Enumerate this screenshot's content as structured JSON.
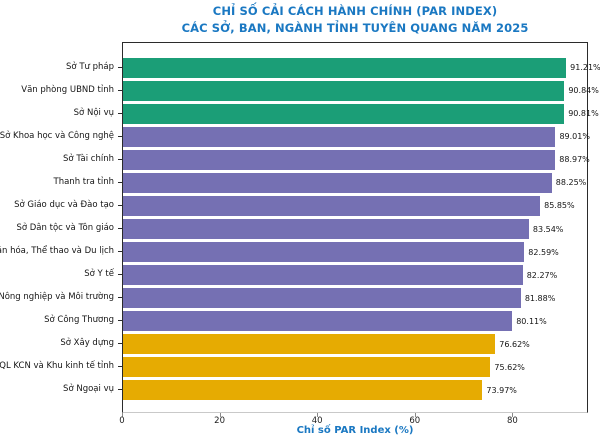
{
  "title": {
    "line1": "CHỈ SỐ CẢI CÁCH HÀNH CHÍNH (PAR INDEX)",
    "line2": "CÁC SỞ, BAN, NGÀNH TỈNH TUYÊN QUANG NĂM 2025"
  },
  "colors": {
    "title_blue": "#1a78c2",
    "green": "#1b9e77",
    "purple": "#7570b3",
    "gold": "#e6ab02",
    "axis_dark": "#2b2b2b",
    "axis_light": "#c9c9c9"
  },
  "chart_data": {
    "type": "bar",
    "orientation": "horizontal",
    "title": "CHỈ SỐ CẢI CÁCH HÀNH CHÍNH (PAR INDEX)\nCÁC SỞ, BAN, NGÀNH TỈNH TUYÊN QUANG NĂM 2025",
    "categories": [
      "Sở Tư pháp",
      "Văn phòng UBND tỉnh",
      "Sở Nội vụ",
      "Sở Khoa học và Công nghệ",
      "Sở Tài chính",
      "Thanh tra tỉnh",
      "Sở Giáo dục và Đào tạo",
      "Sở Dân tộc và Tôn giáo",
      "Sở Văn hóa, Thể thao và Du lịch",
      "Sở Y tế",
      "Sở Nông nghiệp và Môi trường",
      "Sở Công Thương",
      "Sở Xây dựng",
      "BQL KCN và Khu kinh tế tỉnh",
      "Sở Ngoại vụ"
    ],
    "values": [
      91.21,
      90.84,
      90.81,
      89.01,
      88.97,
      88.25,
      85.85,
      83.54,
      82.59,
      82.27,
      81.88,
      80.11,
      76.62,
      75.62,
      73.97
    ],
    "value_labels": [
      "91.21%",
      "90.84%",
      "90.81%",
      "89.01%",
      "88.97%",
      "88.25%",
      "85.85%",
      "83.54%",
      "82.59%",
      "82.27%",
      "81.88%",
      "80.11%",
      "76.62%",
      "75.62%",
      "73.97%"
    ],
    "bar_colors": [
      "#1b9e77",
      "#1b9e77",
      "#1b9e77",
      "#7570b3",
      "#7570b3",
      "#7570b3",
      "#7570b3",
      "#7570b3",
      "#7570b3",
      "#7570b3",
      "#7570b3",
      "#7570b3",
      "#e6ab02",
      "#e6ab02",
      "#e6ab02"
    ],
    "xlabel": "Chỉ số PAR Index (%)",
    "xlim": [
      0,
      95.5
    ],
    "xticks": [
      0,
      20,
      40,
      60,
      80
    ],
    "xtick_labels": [
      "0",
      "20",
      "40",
      "60",
      "80"
    ],
    "grid": false,
    "legend": null
  }
}
